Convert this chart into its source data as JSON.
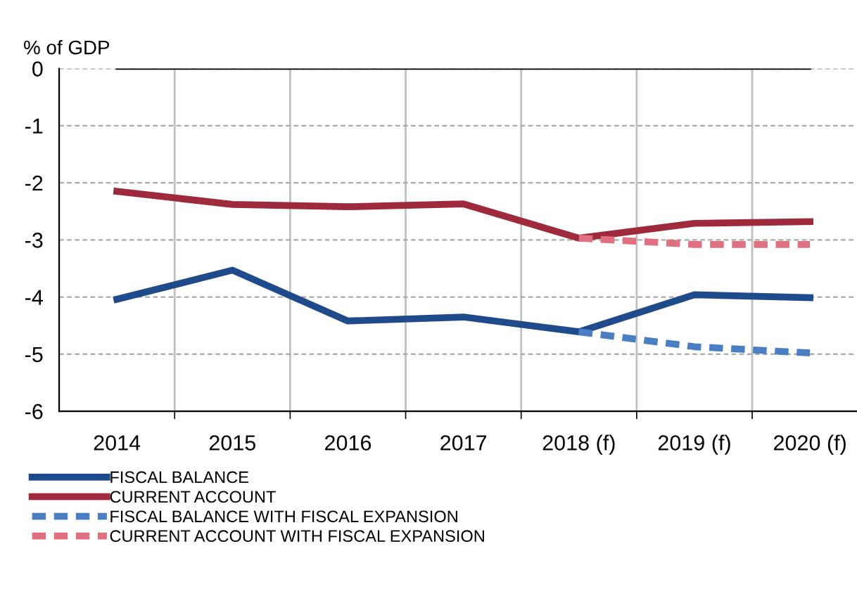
{
  "chart_data": {
    "type": "line",
    "ylabel": "% of GDP",
    "categories": [
      "2014",
      "2015",
      "2016",
      "2017",
      "2018 (f)",
      "2019 (f)",
      "2020 (f)"
    ],
    "series": [
      {
        "name": "FISCAL BALANCE",
        "color": "#1f4a8c",
        "values": [
          -4.04,
          -3.53,
          -4.42,
          -4.35,
          -4.61,
          -3.96,
          -4.01
        ],
        "line_style": "solid"
      },
      {
        "name": "CURRENT ACCOUNT",
        "color": "#9e2a3c",
        "values": [
          -2.15,
          -2.38,
          -2.42,
          -2.37,
          -2.97,
          -2.71,
          -2.68
        ],
        "line_style": "solid"
      },
      {
        "name": "FISCAL BALANCE WITH FISCAL EXPANSION",
        "color": "#4a7fc4",
        "values": [
          null,
          null,
          null,
          null,
          -4.61,
          -4.87,
          -4.98
        ],
        "line_style": "dashed"
      },
      {
        "name": "CURRENT ACCOUNT WITH FISCAL EXPANSION",
        "color": "#e07080",
        "values": [
          null,
          null,
          null,
          null,
          -2.97,
          -3.08,
          -3.08
        ],
        "line_style": "dashed"
      }
    ],
    "ylim": [
      -6,
      0
    ],
    "yticks": [
      -6,
      -5,
      -4,
      -3,
      -2,
      -1,
      0
    ],
    "ref_lines": [
      {
        "axis": "y",
        "value": 0,
        "color": "#000000",
        "line_style": "solid"
      }
    ],
    "grid": true,
    "legend": "bottom",
    "marker": "none"
  }
}
